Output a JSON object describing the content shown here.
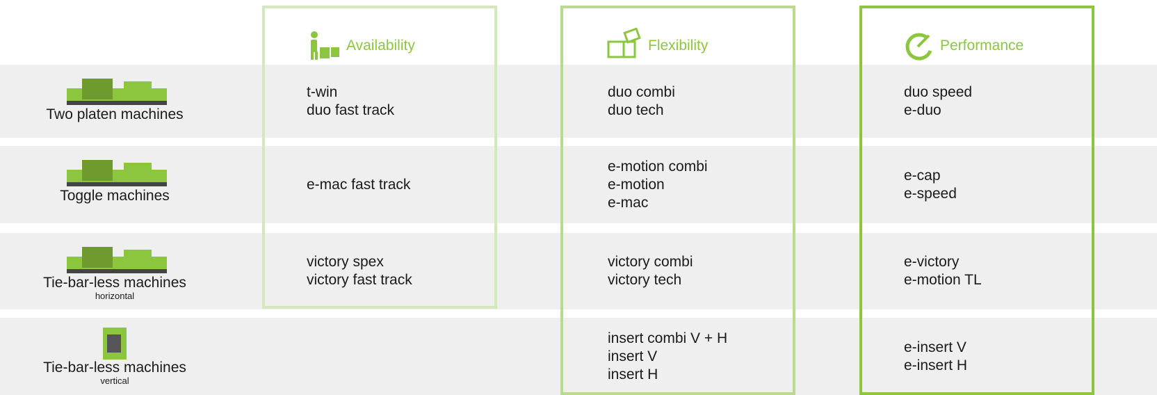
{
  "columns": [
    {
      "title": "Availability"
    },
    {
      "title": "Flexibility"
    },
    {
      "title": "Performance"
    }
  ],
  "rows": [
    {
      "label": "Two platen machines",
      "cells": [
        [
          "t-win",
          "duo fast track"
        ],
        [
          "duo combi",
          "duo tech"
        ],
        [
          "duo speed",
          "e-duo"
        ]
      ]
    },
    {
      "label": "Toggle machines",
      "cells": [
        [
          "e-mac fast track"
        ],
        [
          "e-motion combi",
          "e-motion",
          "e-mac"
        ],
        [
          "e-cap",
          "e-speed"
        ]
      ]
    },
    {
      "label": "Tie-bar-less machines",
      "sublabel": "horizontal",
      "cells": [
        [
          "victory spex",
          "victory fast track"
        ],
        [
          "victory combi",
          "victory tech"
        ],
        [
          "e-victory",
          "e-motion TL"
        ]
      ]
    },
    {
      "label": "Tie-bar-less machines",
      "sublabel": "vertical",
      "cells": [
        [],
        [
          "insert combi V + H",
          "insert V",
          "insert H"
        ],
        [
          "e-insert V",
          "e-insert H"
        ]
      ]
    }
  ]
}
